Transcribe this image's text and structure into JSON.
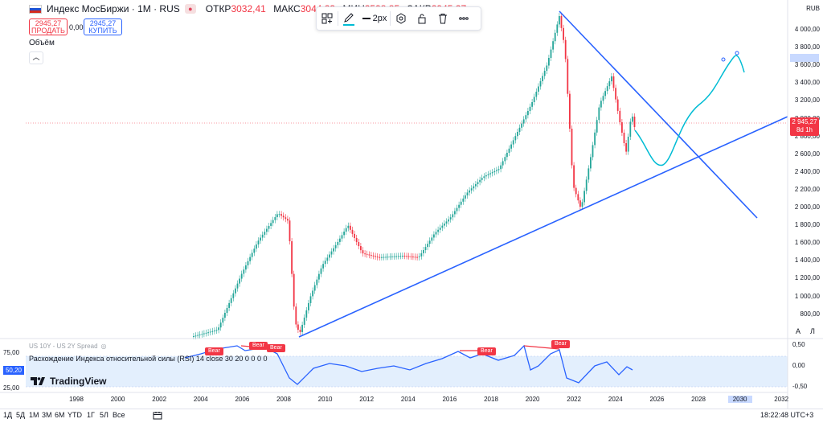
{
  "header": {
    "symbol": "Индекс МосБиржи · 1М · RUS",
    "ohlc": {
      "open_label": "ОТКР",
      "open": "3032,41",
      "high_label": "МАКС",
      "high": "3044,23",
      "low_label": "МИН",
      "low": "2598,85",
      "close_label": "ЗАКР",
      "close": "2945,27"
    },
    "sell_price": "2945,27",
    "sell_label": "ПРОДАТЬ",
    "spread": "0,00",
    "buy_price": "2945,27",
    "buy_label": "КУПИТЬ",
    "volume_label": "Объём",
    "collapse_icon": "chevron-up-icon"
  },
  "draw_toolbar": {
    "items": [
      "group-icon",
      "pencil-icon",
      "line-width",
      "settings-icon",
      "lock-icon",
      "trash-icon",
      "more-icon"
    ],
    "line_width_label": "2px",
    "accent": "#2962ff"
  },
  "price_axis": {
    "currency": "RUB",
    "labels": [
      "4 000,00",
      "3 800,00",
      "3 600,00",
      "3 400,00",
      "3 200,00",
      "3 000,00",
      "2 800,00",
      "2 600,00",
      "2 400,00",
      "2 200,00",
      "2 000,00",
      "1 800,00",
      "1 600,00",
      "1 400,00",
      "1 200,00",
      "1 000,00",
      "800,00"
    ],
    "last_price": "2 945,27",
    "last_price_sub": "8d 1h",
    "auto_btn": "А",
    "log_btn": "Л"
  },
  "rsi": {
    "overlay_label": "US 10Y - US 2Y Spread",
    "title": "Расхождение Индекса относительной силы (RSI) 14 close 30 20 0 0 0 0",
    "left_values": [
      "75,00",
      "50,20",
      "25,00"
    ],
    "right_values": [
      "0,50",
      "0,00",
      "-0,50"
    ],
    "bear_label": "Bear",
    "brand": "TradingView"
  },
  "x_axis": {
    "labels": [
      "1998",
      "2000",
      "2002",
      "2004",
      "2006",
      "2008",
      "2010",
      "2012",
      "2014",
      "2016",
      "2018",
      "2020",
      "2022",
      "2024",
      "2026",
      "2028",
      "2030",
      "2032"
    ],
    "highlighted": "2030"
  },
  "bottom_bar": {
    "ranges": [
      "1Д",
      "5Д",
      "1М",
      "3М",
      "6М",
      "YTD",
      "1Г",
      "5Л",
      "Все"
    ],
    "time": "18:22:48 UTC+3"
  },
  "colors": {
    "up": "#26a69a",
    "down": "#f23645",
    "trendline": "#2962ff",
    "projection": "#00bcd4",
    "rsi_line": "#2962ff",
    "rsi_band": "#e3effd"
  }
}
